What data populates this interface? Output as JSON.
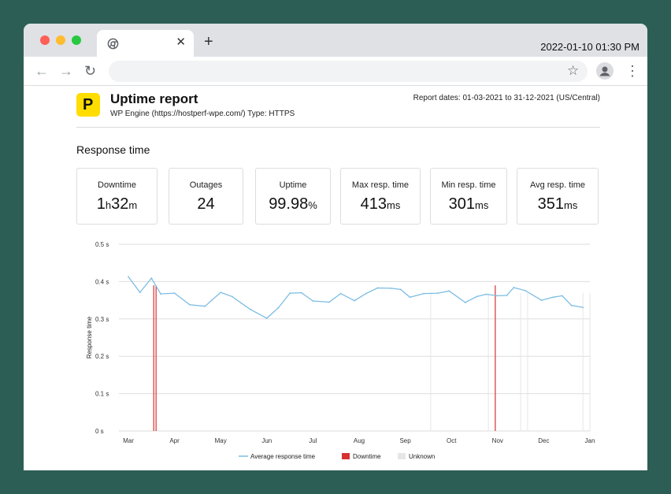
{
  "browser": {
    "tab_title": "",
    "new_tab_glyph": "+",
    "close_glyph": "✕",
    "clock": "2022-01-10 01:30 PM",
    "icons": [
      "chrome-icon",
      "close-icon",
      "plus-icon",
      "back-icon",
      "forward-icon",
      "reload-icon",
      "star-icon",
      "profile-icon",
      "menu-icon"
    ]
  },
  "report": {
    "logo_letter": "P",
    "title": "Uptime report",
    "subtitle": "WP Engine (https://hostperf-wpe.com/) Type: HTTPS",
    "dates": "Report dates: 01-03-2021 to 31-12-2021 (US/Central)",
    "section_title": "Response time"
  },
  "metrics": [
    {
      "label": "Downtime",
      "parts": [
        [
          "1",
          ""
        ],
        [
          "h",
          "unit"
        ],
        [
          "32",
          ""
        ],
        [
          "m",
          "unit"
        ]
      ]
    },
    {
      "label": "Outages",
      "parts": [
        [
          "24",
          ""
        ]
      ]
    },
    {
      "label": "Uptime",
      "parts": [
        [
          "99.98",
          ""
        ],
        [
          "%",
          "unit"
        ]
      ]
    },
    {
      "label": "Max resp. time",
      "parts": [
        [
          "413",
          ""
        ],
        [
          "ms",
          "unit"
        ]
      ]
    },
    {
      "label": "Min resp. time",
      "parts": [
        [
          "301",
          ""
        ],
        [
          "ms",
          "unit"
        ]
      ]
    },
    {
      "label": "Avg resp. time",
      "parts": [
        [
          "351",
          ""
        ],
        [
          "ms",
          "unit"
        ]
      ]
    }
  ],
  "colors": {
    "line": "#7bbde3",
    "downtime": "#d63232",
    "unknown": "#e6e6e6",
    "brand": "#ffdd00"
  },
  "chart_data": {
    "type": "line",
    "ylabel": "Response time",
    "ylim": [
      0,
      0.5
    ],
    "y_ticks": [
      "0 s",
      "0.1 s",
      "0.2 s",
      "0.3 s",
      "0.4 s",
      "0.5 s"
    ],
    "x_ticks": [
      "Mar",
      "Apr",
      "May",
      "Jun",
      "Jul",
      "Aug",
      "Sep",
      "Oct",
      "Nov",
      "Dec",
      "Jan"
    ],
    "grid": true,
    "legend_position": "bottom",
    "series": [
      {
        "name": "Average response time",
        "x": [
          0,
          0.25,
          0.5,
          0.7,
          1.0,
          1.33,
          1.66,
          2.0,
          2.25,
          2.45,
          2.65,
          3.0,
          3.25,
          3.5,
          3.75,
          4.0,
          4.35,
          4.6,
          4.9,
          5.15,
          5.4,
          5.7,
          5.9,
          6.1,
          6.4,
          6.7,
          6.95,
          7.3,
          7.55,
          7.75,
          8.0,
          8.2,
          8.35,
          8.6,
          8.95,
          9.2,
          9.4,
          9.6,
          9.85
        ],
        "y": [
          0.413,
          0.371,
          0.409,
          0.367,
          0.369,
          0.338,
          0.334,
          0.371,
          0.36,
          0.342,
          0.325,
          0.302,
          0.33,
          0.369,
          0.37,
          0.348,
          0.345,
          0.368,
          0.349,
          0.368,
          0.383,
          0.382,
          0.379,
          0.358,
          0.368,
          0.369,
          0.375,
          0.344,
          0.36,
          0.366,
          0.362,
          0.363,
          0.384,
          0.376,
          0.35,
          0.358,
          0.362,
          0.336,
          0.331
        ]
      },
      {
        "name": "Downtime",
        "x": [
          0.55,
          0.6,
          7.95
        ]
      },
      {
        "name": "Unknown",
        "x": [
          6.55,
          7.8,
          8.5,
          8.65,
          9.85,
          10.0
        ]
      }
    ]
  }
}
